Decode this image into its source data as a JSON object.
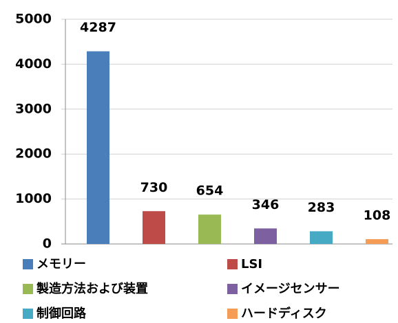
{
  "chart_data": {
    "type": "bar",
    "categories": [
      "メモリー",
      "LSI",
      "製造方法および装置",
      "イメージセンサー",
      "制御回路",
      "ハードディスク"
    ],
    "values": [
      4287,
      730,
      654,
      346,
      283,
      108
    ],
    "colors": [
      "#4a7ebb",
      "#be4b48",
      "#98b954",
      "#7d60a0",
      "#46aac5",
      "#f59d56"
    ],
    "ylim": [
      0,
      5000
    ],
    "yticks": [
      0,
      1000,
      2000,
      3000,
      4000,
      5000
    ],
    "grid": true
  }
}
